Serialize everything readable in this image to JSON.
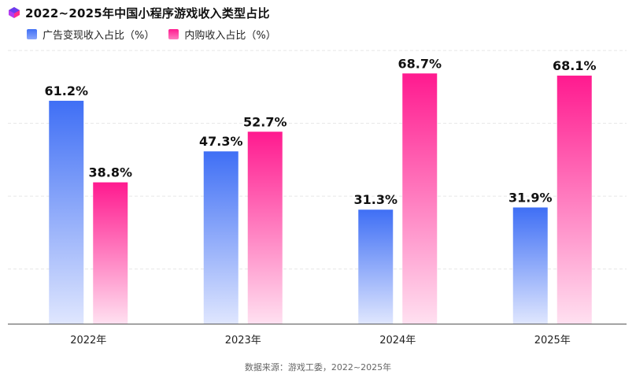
{
  "title": "2022~2025年中国小程序游戏收入类型占比",
  "legend": {
    "series1": "广告变现收入占比（%）",
    "series2": "内购收入占比（%）"
  },
  "source": "数据来源：游戏工委，2022~2025年",
  "colors": {
    "series1_top": "#3f6ff5",
    "series1_bottom": "#dfe6fe",
    "series2_top": "#ff1a8f",
    "series2_bottom": "#ffe0f0",
    "grid": "#e6e6e6",
    "axis": "#555555"
  },
  "chart_data": {
    "type": "bar",
    "title": "2022~2025年中国小程序游戏收入类型占比",
    "categories": [
      "2022年",
      "2023年",
      "2024年",
      "2025年"
    ],
    "series": [
      {
        "name": "广告变现收入占比（%）",
        "values": [
          61.2,
          47.3,
          31.3,
          31.9
        ],
        "labels": [
          "61.2%",
          "47.3%",
          "31.3%",
          "31.9%"
        ]
      },
      {
        "name": "内购收入占比（%）",
        "values": [
          38.8,
          52.7,
          68.7,
          68.1
        ],
        "labels": [
          "38.8%",
          "52.7%",
          "68.7%",
          "68.1%"
        ]
      }
    ],
    "ylim": [
      0,
      100
    ],
    "grid": true,
    "legend_position": "top-left"
  }
}
